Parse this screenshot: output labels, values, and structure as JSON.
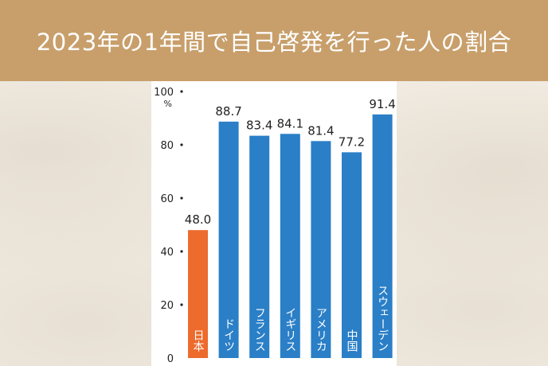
{
  "header": {
    "title": "2023年の1年間で自己啓発を行った人の割合"
  },
  "chart_data": {
    "type": "bar",
    "title": "2023年の1年間で自己啓発を行った人の割合",
    "ylabel": "%",
    "ylim": [
      0,
      100
    ],
    "yticks": [
      "100",
      "80",
      "60",
      "40",
      "20",
      "0"
    ],
    "categories": [
      "日本",
      "ドイツ",
      "フランス",
      "イギリス",
      "アメリカ",
      "中国",
      "スウェーデン"
    ],
    "values": [
      48.0,
      88.7,
      83.4,
      84.1,
      81.4,
      77.2,
      91.4
    ],
    "value_labels": [
      "48.0",
      "88.7",
      "83.4",
      "84.1",
      "81.4",
      "77.2",
      "91.4"
    ],
    "colors": {
      "highlight": "#ec6b2d",
      "default": "#2a7fc7",
      "label": "#ffffff",
      "text": "#222222"
    }
  }
}
